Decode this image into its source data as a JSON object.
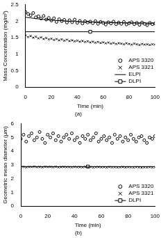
{
  "chart_data": [
    {
      "type": "scatter",
      "title": "(a)",
      "x_label": "Time (min)",
      "y_label": "Mass Concentration (mg/m³)",
      "xlim": [
        0,
        100
      ],
      "xticks": [
        0,
        20,
        40,
        60,
        80,
        100
      ],
      "ylim": [
        0,
        2.5
      ],
      "yticks": [
        0,
        0.5,
        1,
        1.5,
        2,
        2.5
      ],
      "grid": false,
      "legend": "lower right",
      "series": [
        {
          "name": "APS 3320",
          "type": "scatter",
          "marker": "circle",
          "color": "#000000",
          "x": [
            0,
            2,
            4,
            6,
            8,
            10,
            12,
            14,
            16,
            18,
            20,
            22,
            24,
            26,
            28,
            30,
            32,
            34,
            36,
            38,
            40,
            42,
            44,
            46,
            48,
            50,
            52,
            54,
            56,
            58,
            60,
            62,
            64,
            66,
            68,
            70,
            72,
            74,
            76,
            78,
            80,
            82,
            84,
            86,
            88,
            90,
            92,
            94,
            96,
            98,
            100
          ],
          "values": [
            2.28,
            2.22,
            2.18,
            2.25,
            2.12,
            2.15,
            2.08,
            2.16,
            2.05,
            2.1,
            2.02,
            2.09,
            1.98,
            2.06,
            2.0,
            2.04,
            1.96,
            2.03,
            1.97,
            2.05,
            1.95,
            2.01,
            1.93,
            2.0,
            1.96,
            1.99,
            1.94,
            2.0,
            1.92,
            1.98,
            1.95,
            1.9,
            1.97,
            1.93,
            1.99,
            1.91,
            1.96,
            1.92,
            1.98,
            1.9,
            1.94,
            1.97,
            1.91,
            1.95,
            1.89,
            1.96,
            1.92,
            1.88,
            1.95,
            1.91,
            1.93
          ]
        },
        {
          "name": "APS 3321",
          "type": "scatter",
          "marker": "cross",
          "color": "#000000",
          "x": [
            0,
            2,
            4,
            6,
            8,
            10,
            12,
            14,
            16,
            18,
            20,
            22,
            24,
            26,
            28,
            30,
            32,
            34,
            36,
            38,
            40,
            42,
            44,
            46,
            48,
            50,
            52,
            54,
            56,
            58,
            60,
            62,
            64,
            66,
            68,
            70,
            72,
            74,
            76,
            78,
            80,
            82,
            84,
            86,
            88,
            90,
            92,
            94,
            96,
            98,
            100
          ],
          "values": [
            1.57,
            1.52,
            1.55,
            1.5,
            1.53,
            1.48,
            1.51,
            1.46,
            1.49,
            1.45,
            1.47,
            1.43,
            1.46,
            1.42,
            1.45,
            1.41,
            1.44,
            1.4,
            1.42,
            1.39,
            1.41,
            1.38,
            1.4,
            1.37,
            1.39,
            1.36,
            1.38,
            1.35,
            1.37,
            1.34,
            1.36,
            1.33,
            1.35,
            1.32,
            1.34,
            1.31,
            1.33,
            1.32,
            1.3,
            1.33,
            1.31,
            1.29,
            1.32,
            1.3,
            1.28,
            1.31,
            1.29,
            1.3,
            1.28,
            1.3,
            1.29
          ]
        },
        {
          "name": "ELPI",
          "type": "line",
          "line_style": "solid",
          "color": "#000000",
          "x": [
            0,
            10,
            20,
            30,
            40,
            50,
            60,
            70,
            80,
            90,
            100
          ],
          "values": [
            2.12,
            2.07,
            2.03,
            2.01,
            1.99,
            1.98,
            1.97,
            1.96,
            1.95,
            1.95,
            1.94
          ]
        },
        {
          "name": "DLPI",
          "type": "line",
          "line_style": "solid",
          "marker": "square",
          "color": "#000000",
          "x": [
            0,
            50,
            100
          ],
          "values": [
            1.68,
            1.68,
            1.68
          ]
        }
      ]
    },
    {
      "type": "scatter",
      "title": "(b)",
      "x_label": "Time (min)",
      "y_label": "Geometric mean diameter (μm)",
      "xlim": [
        0,
        100
      ],
      "xticks": [
        0,
        20,
        40,
        60,
        80,
        100
      ],
      "ylim": [
        0,
        6
      ],
      "yticks": [
        0,
        1,
        2,
        3,
        4,
        5,
        6
      ],
      "grid": false,
      "legend": "lower right",
      "series": [
        {
          "name": "APS 3320",
          "type": "scatter",
          "marker": "circle",
          "color": "#000000",
          "x": [
            0,
            2,
            4,
            6,
            8,
            10,
            12,
            14,
            16,
            18,
            20,
            22,
            24,
            26,
            28,
            30,
            32,
            34,
            36,
            38,
            40,
            42,
            44,
            46,
            48,
            50,
            52,
            54,
            56,
            58,
            60,
            62,
            64,
            66,
            68,
            70,
            72,
            74,
            76,
            78,
            80,
            82,
            84,
            86,
            88,
            90,
            92,
            94,
            96,
            98,
            100
          ],
          "values": [
            4.9,
            5.2,
            4.7,
            5.1,
            5.3,
            4.8,
            5.0,
            5.4,
            4.9,
            4.6,
            5.2,
            5.0,
            5.3,
            4.8,
            5.1,
            4.7,
            5.0,
            5.2,
            4.9,
            5.3,
            4.8,
            5.0,
            4.6,
            5.1,
            4.9,
            5.2,
            4.8,
            5.0,
            5.3,
            4.7,
            4.9,
            5.1,
            4.8,
            5.0,
            4.6,
            5.2,
            4.9,
            5.1,
            4.7,
            5.0,
            4.8,
            5.2,
            4.9,
            4.7,
            5.0,
            5.1,
            4.8,
            4.6,
            5.0,
            4.9,
            5.1
          ]
        },
        {
          "name": "APS 3321",
          "type": "scatter",
          "marker": "cross",
          "color": "#000000",
          "x": [
            0,
            2,
            4,
            6,
            8,
            10,
            12,
            14,
            16,
            18,
            20,
            22,
            24,
            26,
            28,
            30,
            32,
            34,
            36,
            38,
            40,
            42,
            44,
            46,
            48,
            50,
            52,
            54,
            56,
            58,
            60,
            62,
            64,
            66,
            68,
            70,
            72,
            74,
            76,
            78,
            80,
            82,
            84,
            86,
            88,
            90,
            92,
            94,
            96,
            98,
            100
          ],
          "values": [
            2.84,
            2.87,
            2.83,
            2.86,
            2.85,
            2.88,
            2.84,
            2.86,
            2.83,
            2.87,
            2.85,
            2.86,
            2.84,
            2.87,
            2.83,
            2.85,
            2.86,
            2.84,
            2.85,
            2.83,
            2.86,
            2.84,
            2.85,
            2.83,
            2.86,
            2.84,
            2.85,
            2.82,
            2.84,
            2.85,
            2.83,
            2.84,
            2.82,
            2.85,
            2.83,
            2.84,
            2.82,
            2.83,
            2.85,
            2.82,
            2.84,
            2.83,
            2.82,
            2.84,
            2.83,
            2.81,
            2.83,
            2.82,
            2.84,
            2.82,
            2.83
          ]
        },
        {
          "name": "DLPI",
          "type": "line",
          "line_style": "solid",
          "marker": "square",
          "color": "#000000",
          "x": [
            0,
            50,
            100
          ],
          "values": [
            2.88,
            2.88,
            2.88
          ]
        }
      ]
    }
  ]
}
